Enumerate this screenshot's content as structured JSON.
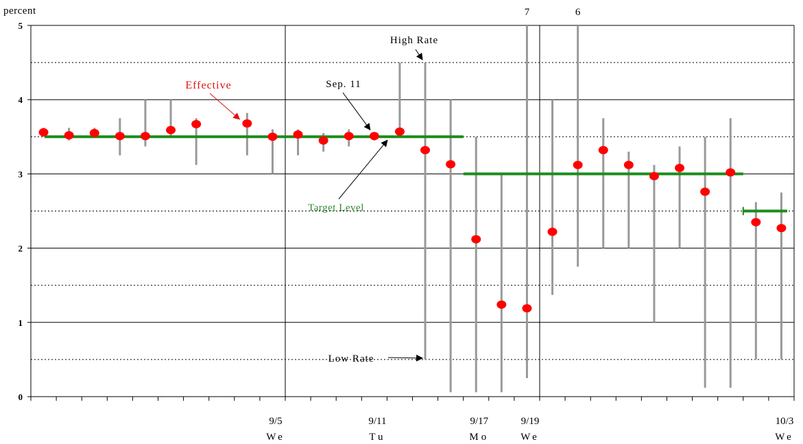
{
  "chart_data": {
    "type": "scatter",
    "ylabel": "percent",
    "ylim": [
      0,
      5
    ],
    "y_ticks": [
      "0",
      "1",
      "2",
      "3",
      "4",
      "5"
    ],
    "gridlines": {
      "solid": [
        1,
        2,
        3,
        4,
        5
      ],
      "dotted": [
        0.5,
        1.5,
        2.5,
        3.5,
        4.5
      ]
    },
    "x_count": 30,
    "x_tick_labels": [
      {
        "index": 9,
        "date": "9/5",
        "day": "We"
      },
      {
        "index": 13,
        "date": "9/11",
        "day": "Tu"
      },
      {
        "index": 17,
        "date": "9/17",
        "day": "Mo"
      },
      {
        "index": 19,
        "date": "9/19",
        "day": "We"
      },
      {
        "index": 29,
        "date": "10/3",
        "day": "We"
      }
    ],
    "week_separators_after_index": [
      9,
      19
    ],
    "effective": [
      3.56,
      3.52,
      3.55,
      3.51,
      3.51,
      3.59,
      3.67,
      null,
      3.68,
      3.5,
      3.53,
      3.45,
      3.51,
      3.51,
      3.57,
      3.32,
      3.13,
      2.12,
      1.24,
      1.19,
      2.22,
      3.12,
      3.32,
      3.12,
      2.97,
      3.08,
      2.76,
      3.02,
      2.35,
      2.27
    ],
    "high": [
      3.62,
      3.62,
      3.62,
      3.75,
      4.0,
      4.0,
      3.75,
      null,
      3.82,
      3.6,
      3.6,
      3.55,
      3.6,
      3.56,
      4.5,
      4.5,
      4.0,
      3.5,
      3.0,
      5.0,
      4.0,
      5.0,
      3.75,
      3.3,
      3.12,
      3.37,
      3.5,
      3.75,
      2.62,
      2.75
    ],
    "low": [
      3.5,
      3.45,
      3.5,
      3.25,
      3.37,
      3.5,
      3.12,
      null,
      3.25,
      3.0,
      3.25,
      3.3,
      3.37,
      3.45,
      3.5,
      0.5,
      0.06,
      0.06,
      0.06,
      0.25,
      1.37,
      1.75,
      2.0,
      2.0,
      1.0,
      2.0,
      0.12,
      0.12,
      0.5,
      0.5
    ],
    "target": [
      {
        "from": 0,
        "to": 16,
        "value": 3.5
      },
      {
        "from": 17,
        "to": 27,
        "value": 3.0
      },
      {
        "from": 28,
        "to": 29,
        "value": 2.5
      }
    ],
    "offscale_labels": [
      {
        "index": 19,
        "text": "7"
      },
      {
        "index": 21,
        "text": "6"
      }
    ],
    "annotations": {
      "effective": "Effective",
      "sep11": "Sep. 11",
      "high_rate": "High Rate",
      "target_level": "Target Level",
      "low_rate": "Low Rate"
    },
    "colors": {
      "effective": "#ff0000",
      "target": "#1a8c1a",
      "range": "#999999",
      "target_label": "#2e8b2e",
      "effective_label": "#e01010"
    }
  }
}
